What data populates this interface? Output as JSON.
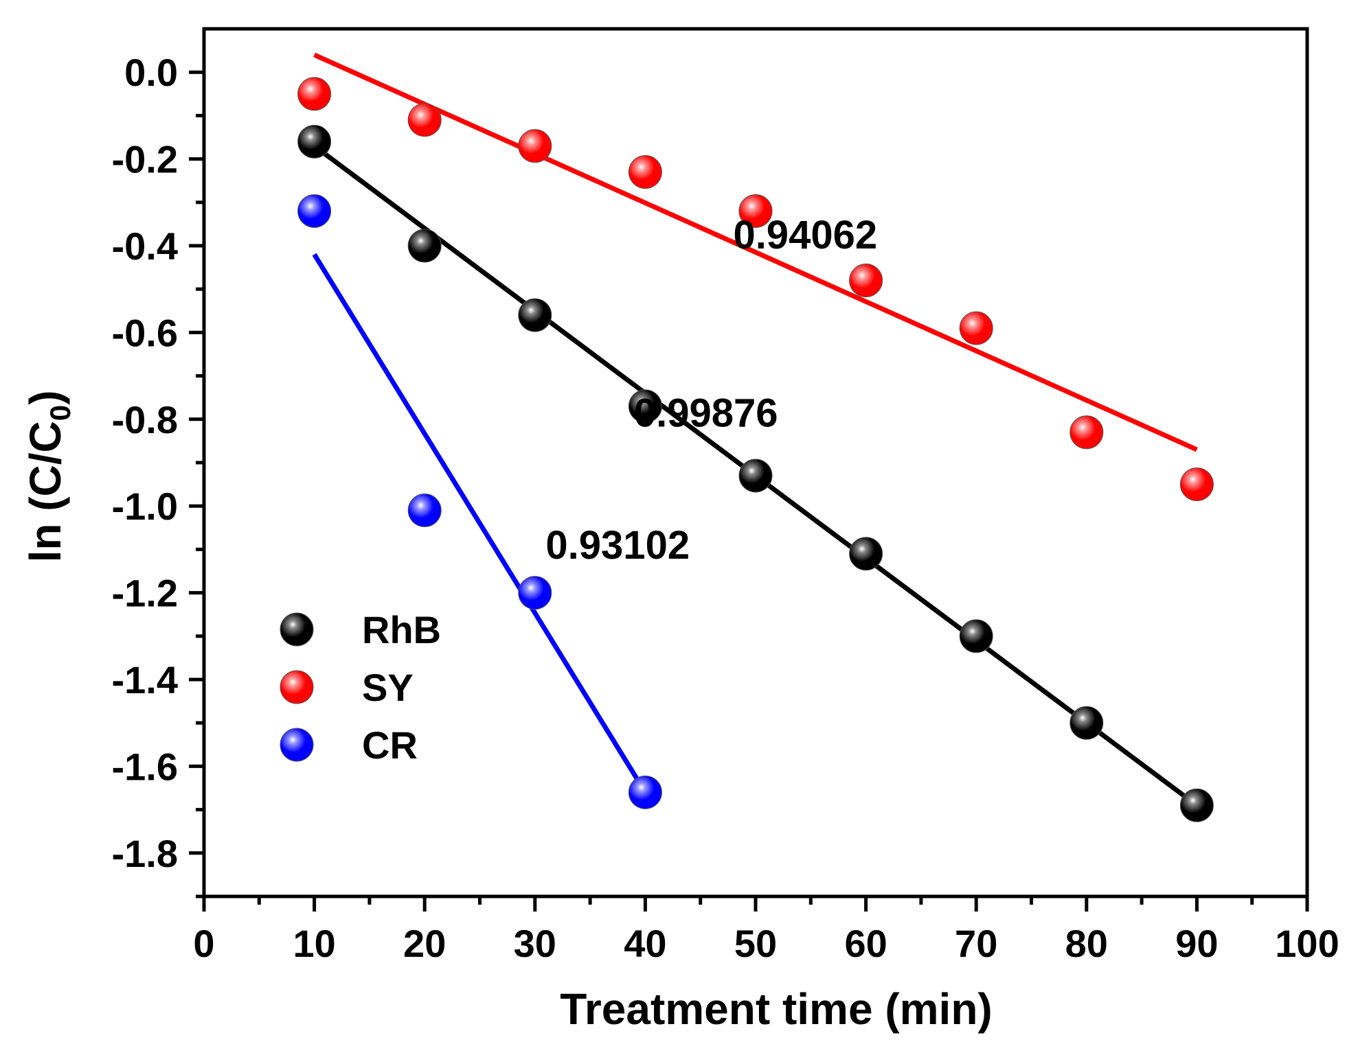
{
  "chart_data": {
    "type": "scatter",
    "title": "",
    "xlabel": "Treatment time (min)",
    "ylabel": "ln (C/C",
    "ylabel_subscript": "0",
    "ylabel_close": ")",
    "xlim": [
      0,
      100
    ],
    "ylim": [
      -1.9,
      0.1
    ],
    "x_ticks": [
      0,
      10,
      20,
      30,
      40,
      50,
      60,
      70,
      80,
      90,
      100
    ],
    "x_tick_labels": [
      "0",
      "10",
      "20",
      "30",
      "40",
      "50",
      "60",
      "70",
      "80",
      "90",
      "100"
    ],
    "y_ticks": [
      0.0,
      -0.2,
      -0.4,
      -0.6,
      -0.8,
      -1.0,
      -1.2,
      -1.4,
      -1.6,
      -1.8
    ],
    "y_tick_labels": [
      "0.0",
      "-0.2",
      "-0.4",
      "-0.6",
      "-0.8",
      "-1.0",
      "-1.2",
      "-1.4",
      "-1.6",
      "-1.8"
    ],
    "series": [
      {
        "name": "RhB",
        "color": "#000000",
        "highlight": "#8a8a8a",
        "x": [
          10,
          20,
          30,
          40,
          50,
          60,
          70,
          80,
          90
        ],
        "values": [
          -0.16,
          -0.4,
          -0.56,
          -0.77,
          -0.93,
          -1.11,
          -1.3,
          -1.5,
          -1.69
        ],
        "fit": {
          "x": [
            10,
            90
          ],
          "y": [
            -0.17,
            -1.69
          ]
        },
        "r2_label": "0.99876",
        "r2_at": [
          45.5,
          -0.785
        ]
      },
      {
        "name": "SY",
        "color": "#ff0000",
        "highlight": "#ff9a9a",
        "x": [
          10,
          20,
          30,
          40,
          50,
          60,
          70,
          80,
          90
        ],
        "values": [
          -0.05,
          -0.11,
          -0.17,
          -0.23,
          -0.32,
          -0.48,
          -0.59,
          -0.83,
          -0.95
        ],
        "fit": {
          "x": [
            10,
            90
          ],
          "y": [
            0.04,
            -0.87
          ]
        },
        "r2_label": "0.94062",
        "r2_at": [
          54.5,
          -0.375
        ]
      },
      {
        "name": "CR",
        "color": "#0000ff",
        "highlight": "#9a9aff",
        "x": [
          10,
          20,
          30,
          40
        ],
        "values": [
          -0.32,
          -1.01,
          -1.2,
          -1.66
        ],
        "fit": {
          "x": [
            10,
            40
          ],
          "y": [
            -0.42,
            -1.66
          ]
        },
        "r2_label": "0.93102",
        "r2_at": [
          37.5,
          -1.09
        ]
      }
    ],
    "legend": {
      "position": "bottom-left",
      "entries": [
        "RhB",
        "SY",
        "CR"
      ]
    },
    "grid": false
  }
}
